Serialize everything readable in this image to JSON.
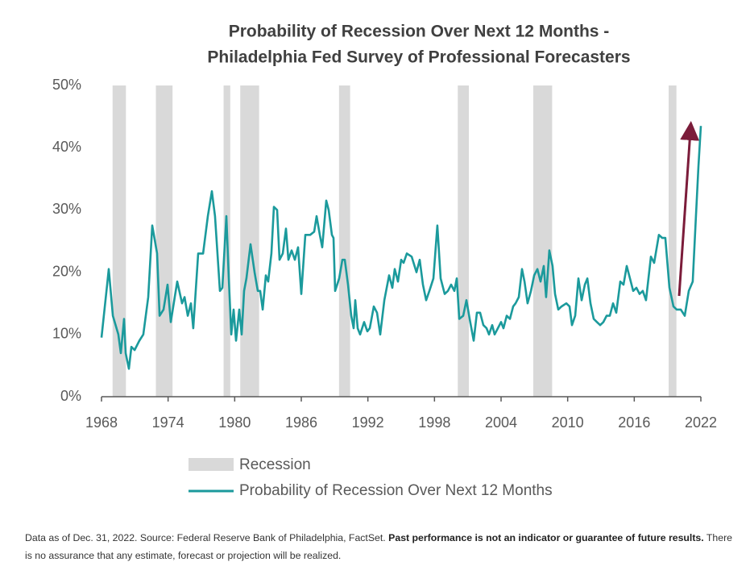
{
  "chart_data": {
    "type": "line",
    "title": [
      "Probability of Recession Over Next 12 Months -",
      "Philadelphia Fed Survey of Professional Forecasters"
    ],
    "x": [
      1968.0,
      1968.51,
      1968.65,
      1969.02,
      1969.52,
      1969.74,
      1970.03,
      1970.18,
      1970.47,
      1970.69,
      1970.98,
      1971.41,
      1971.77,
      1972.21,
      1972.57,
      1973.01,
      1973.23,
      1973.59,
      1973.95,
      1974.24,
      1974.82,
      1975.26,
      1975.48,
      1975.77,
      1976.06,
      1976.27,
      1976.71,
      1977.15,
      1977.58,
      1977.94,
      1978.23,
      1978.67,
      1978.89,
      1979.25,
      1979.47,
      1979.69,
      1979.9,
      1980.12,
      1980.41,
      1980.63,
      1980.85,
      1981.06,
      1981.43,
      1981.79,
      1982.08,
      1982.3,
      1982.52,
      1982.81,
      1983.02,
      1983.31,
      1983.53,
      1983.82,
      1984.04,
      1984.33,
      1984.62,
      1984.84,
      1985.13,
      1985.42,
      1985.71,
      1986.0,
      1986.36,
      1986.8,
      1987.16,
      1987.38,
      1987.67,
      1987.89,
      1988.25,
      1988.47,
      1988.76,
      1988.9,
      1989.05,
      1989.41,
      1989.7,
      1989.92,
      1990.21,
      1990.5,
      1990.72,
      1990.86,
      1991.08,
      1991.3,
      1991.66,
      1991.95,
      1992.17,
      1992.53,
      1992.82,
      1993.11,
      1993.48,
      1993.91,
      1994.2,
      1994.42,
      1994.71,
      1995.0,
      1995.22,
      1995.51,
      1995.94,
      1996.38,
      1996.67,
      1996.96,
      1997.25,
      1997.54,
      1997.9,
      1998.26,
      1998.56,
      1998.92,
      1999.21,
      1999.5,
      1999.79,
      2000.01,
      2000.23,
      2000.59,
      2000.88,
      2001.17,
      2001.53,
      2001.82,
      2002.11,
      2002.4,
      2002.69,
      2002.91,
      2003.2,
      2003.42,
      2003.71,
      2004.0,
      2004.22,
      2004.51,
      2004.8,
      2005.09,
      2005.31,
      2005.6,
      2005.89,
      2006.11,
      2006.39,
      2006.69,
      2006.98,
      2007.27,
      2007.56,
      2007.85,
      2008.06,
      2008.35,
      2008.64,
      2008.86,
      2009.15,
      2009.44,
      2009.88,
      2010.17,
      2010.39,
      2010.68,
      2010.97,
      2011.26,
      2011.55,
      2011.77,
      2012.06,
      2012.35,
      2012.64,
      2012.93,
      2013.22,
      2013.51,
      2013.8,
      2014.09,
      2014.38,
      2014.74,
      2015.03,
      2015.32,
      2015.61,
      2015.9,
      2016.19,
      2016.48,
      2016.77,
      2017.06,
      2017.5,
      2017.79,
      2018.22,
      2018.52,
      2018.8,
      2019.17,
      2019.53,
      2019.82,
      2020.19,
      2020.55,
      2020.91,
      2021.27,
      2021.56,
      2021.78,
      2022.0
    ],
    "series": [
      {
        "name": "Probability of Recession Over Next 12 Months",
        "color": "#1b9a9c",
        "values": [
          9.5,
          18,
          20.5,
          13,
          10,
          7,
          12.5,
          7,
          4.5,
          8,
          7.5,
          9,
          10,
          16,
          27.5,
          23,
          13,
          14,
          18,
          12,
          18.5,
          15,
          16,
          13,
          15,
          11,
          23,
          23,
          29,
          33,
          29,
          17,
          17.5,
          29,
          19,
          10,
          14,
          9,
          14,
          10,
          17,
          19,
          24.5,
          20,
          17,
          17,
          14,
          19.5,
          18.5,
          23,
          30.5,
          30,
          22,
          23,
          27,
          22,
          23.5,
          22,
          24,
          16.5,
          26,
          26,
          26.5,
          29,
          26,
          24,
          31.5,
          30,
          26,
          25.5,
          17,
          19,
          22,
          22,
          18,
          13,
          11,
          15.5,
          11,
          10,
          12,
          10.5,
          11,
          14.5,
          13.5,
          10,
          15.5,
          19.5,
          17.5,
          20.5,
          18.5,
          22,
          21.5,
          23,
          22.5,
          20,
          22,
          18,
          15.5,
          17,
          19,
          27.5,
          19,
          16.5,
          17,
          18,
          17,
          19,
          12.5,
          13,
          15.5,
          12.5,
          9,
          13.5,
          13.5,
          11.5,
          11,
          10,
          11.5,
          10,
          11,
          12,
          11,
          13,
          12.5,
          14.5,
          15,
          16,
          20.5,
          18.5,
          15,
          17,
          19.5,
          20.5,
          18.5,
          21,
          16,
          23.5,
          21,
          16.5,
          14,
          14.5,
          15,
          14.5,
          11.5,
          13,
          19,
          15.5,
          18,
          19,
          15,
          12.5,
          12,
          11.5,
          12,
          13,
          13,
          15,
          13.5,
          18.5,
          18,
          21,
          19,
          17,
          17.5,
          16.5,
          17,
          15.5,
          22.5,
          21.5,
          26,
          25.5,
          25.5,
          17.5,
          14.5,
          14,
          14,
          13,
          17,
          18.5,
          29,
          37,
          43.5
        ]
      }
    ],
    "recessions": {
      "name": "Recession",
      "color": "#d9d9d9",
      "periods": [
        [
          1969.0,
          1970.2
        ],
        [
          1972.9,
          1974.4
        ],
        [
          1979.0,
          1979.6
        ],
        [
          1980.5,
          1982.2
        ],
        [
          1989.4,
          1990.4
        ],
        [
          2000.1,
          2001.1
        ],
        [
          2006.9,
          2008.6
        ],
        [
          2019.1,
          2019.8
        ]
      ]
    },
    "xlim": [
      1968,
      2022
    ],
    "xticks": [
      1968,
      1974,
      1980,
      1986,
      1992,
      1998,
      2004,
      2010,
      2016,
      2022
    ],
    "ylim": [
      0,
      50
    ],
    "yticks": [
      {
        "value": 0,
        "label": "0%"
      },
      {
        "value": 10,
        "label": "10%"
      },
      {
        "value": 20,
        "label": "20%"
      },
      {
        "value": 30,
        "label": "30%"
      },
      {
        "value": 40,
        "label": "40%"
      },
      {
        "value": 50,
        "label": "50%"
      }
    ],
    "footnote": [
      "Data as of Dec. 31, 2022. Source: Federal Reserve Bank of Philadelphia, FactSet.",
      "Past performance is not an indicator or guarantee of future results.",
      "There is no assurance that any estimate, forecast or projection will be realized."
    ]
  }
}
